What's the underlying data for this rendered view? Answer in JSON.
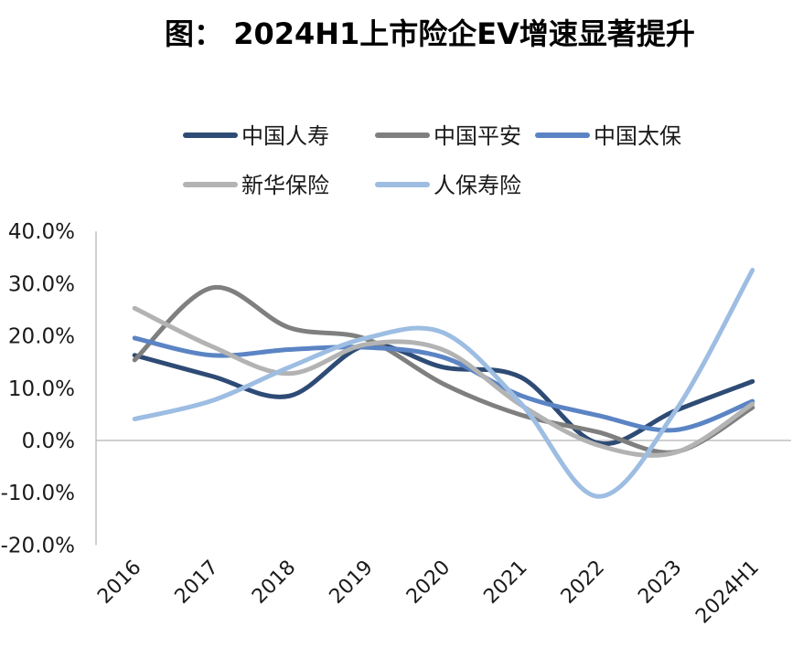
{
  "title": "图： 2024H1上市险企EV增速显著提升",
  "chart_data": {
    "type": "line",
    "title": "图： 2024H1上市险企EV增速显著提升",
    "xlabel": "",
    "ylabel": "",
    "categories": [
      "2016",
      "2017",
      "2018",
      "2019",
      "2020",
      "2021",
      "2022",
      "2023",
      "2024H1"
    ],
    "y_ticks": [
      "40.0%",
      "30.0%",
      "20.0%",
      "10.0%",
      "0.0%",
      "-10.0%",
      "-20.0%"
    ],
    "ylim": [
      -20,
      40
    ],
    "smooth": true,
    "grid": false,
    "legend_position": "top",
    "series": [
      {
        "name": "中国人寿",
        "color": "#2e4b75",
        "values": [
          16.3,
          12.3,
          8.5,
          18.2,
          14.0,
          12.1,
          -0.5,
          5.7,
          11.3
        ]
      },
      {
        "name": "中国平安",
        "color": "#7f7f7f",
        "values": [
          15.4,
          29.2,
          21.6,
          19.4,
          10.8,
          4.9,
          1.6,
          -2.2,
          6.3
        ]
      },
      {
        "name": "中国太保",
        "color": "#5b84c4",
        "values": [
          19.6,
          16.3,
          17.4,
          17.8,
          15.9,
          8.6,
          4.8,
          2.0,
          7.5
        ]
      },
      {
        "name": "新华保险",
        "color": "#b3b3b3",
        "values": [
          25.3,
          18.0,
          12.8,
          18.4,
          17.3,
          6.8,
          -0.9,
          -2.3,
          7.0
        ]
      },
      {
        "name": "人保寿险",
        "color": "#9dbde2",
        "values": [
          4.1,
          7.6,
          14.0,
          19.6,
          20.6,
          7.1,
          -10.7,
          5.6,
          32.6
        ]
      }
    ]
  }
}
